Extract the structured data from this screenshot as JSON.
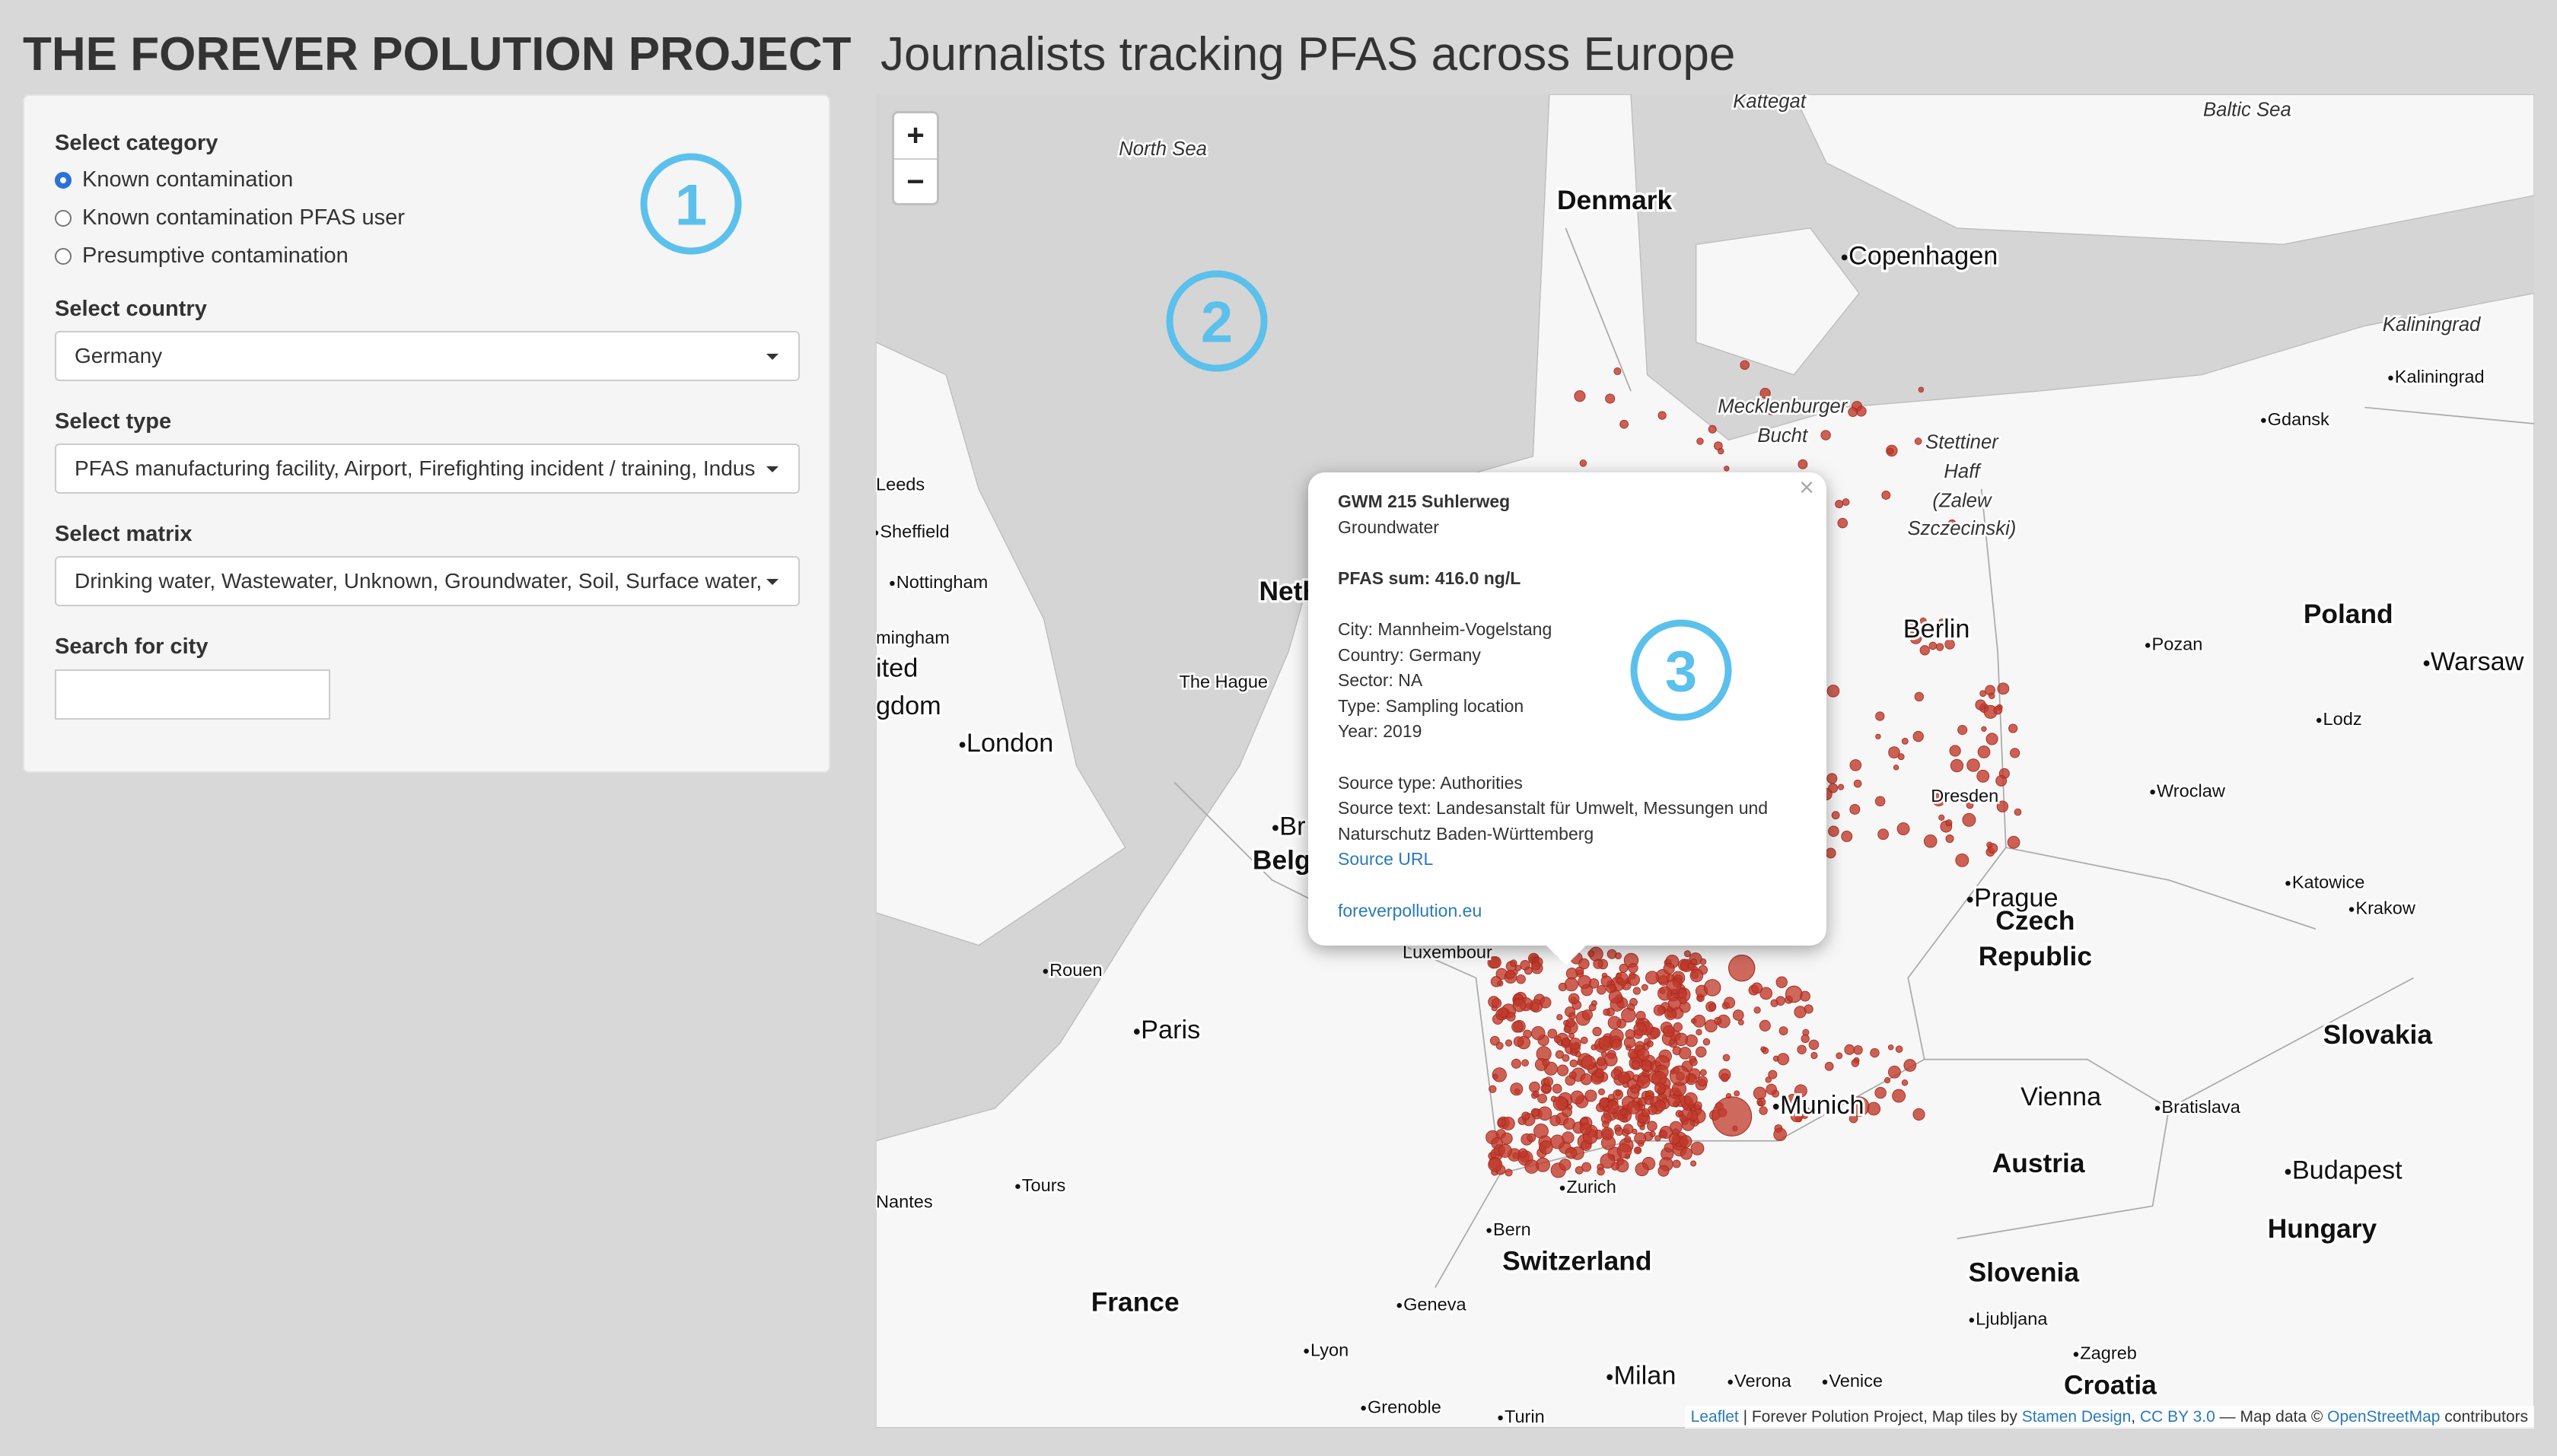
{
  "header": {
    "title": "THE FOREVER POLUTION PROJECT",
    "subtitle": "Journalists tracking PFAS across Europe"
  },
  "sidebar": {
    "category_label": "Select category",
    "category_options": [
      "Known contamination",
      "Known contamination PFAS user",
      "Presumptive contamination"
    ],
    "country_label": "Select country",
    "country_value": "Germany",
    "type_label": "Select type",
    "type_value": "PFAS manufacturing facility, Airport, Firefighting incident / training, Indus",
    "matrix_label": "Select matrix",
    "matrix_value": "Drinking water, Wastewater, Unknown, Groundwater, Soil, Surface water,",
    "search_label": "Search for city"
  },
  "map": {
    "zoom_in": "+",
    "zoom_out": "−",
    "labels": [
      "Kattegat",
      "Baltic Sea",
      "North Sea",
      "Denmark",
      "Copenhagen",
      "Kaliningrad",
      "Kaliningrad",
      "Mecklenburger",
      "Bucht",
      "Stettiner",
      "Haff",
      "(Zalew",
      "Szczecinski)",
      "Gdansk",
      "Leeds",
      "Sheffield",
      "Nottingham",
      "Neth",
      "mingham",
      "ited",
      "gdom",
      "The Hague",
      "London",
      "Berlin",
      "Poland",
      "Pozan",
      "Warsaw",
      "Lodz",
      "Dresden",
      "Wroclaw",
      "Br",
      "Belg",
      "Prague",
      "Czech",
      "Republic",
      "Katowice",
      "Krakow",
      "Rouen",
      "Luxembour",
      "Paris",
      "Slovakia",
      "Vienna",
      "Bratislava",
      "Munich",
      "Austria",
      "Budapest",
      "Tours",
      "Zurich",
      "Nantes",
      "Bern",
      "Hungary",
      "Switzerland",
      "Slovenia",
      "France",
      "Geneva",
      "Ljubljana",
      "Lyon",
      "Zagreb",
      "Milan",
      "Verona",
      "Venice",
      "Croatia",
      "Grenoble",
      "Turin"
    ],
    "popup": {
      "close": "×",
      "title": "GWM 215 Suhlerweg",
      "matrix": "Groundwater",
      "pfas_sum": "PFAS sum: 416.0 ng/L",
      "details": [
        "City: Mannheim-Vogelstang",
        "Country: Germany",
        "Sector: NA",
        "Type: Sampling location",
        "Year: 2019"
      ],
      "source_type": "Source type: Authorities",
      "source_text": "Source text: Landesanstalt für Umwelt, Messungen und Naturschutz Baden-Württemberg",
      "source_url": "Source URL",
      "site": "foreverpollution.eu"
    },
    "attribution": {
      "leaflet": "Leaflet",
      "project": "| Forever Polution Project, Map tiles by",
      "stamen": "Stamen Design",
      "comma": ",",
      "license": "CC BY 3.0",
      "data": "— Map data ©",
      "osm": "OpenStreetMap",
      "contributors": "contributors"
    }
  },
  "annotations": [
    "1",
    "2",
    "3"
  ]
}
